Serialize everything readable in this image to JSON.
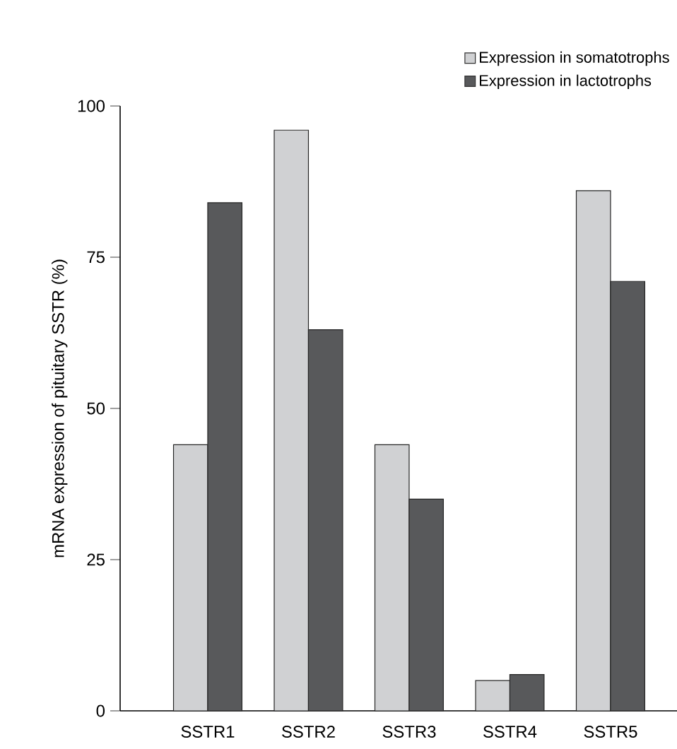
{
  "chart_data": {
    "type": "bar",
    "ylabel": "mRNA expression of pituitary SSTR (%)",
    "categories": [
      "SSTR1",
      "SSTR2",
      "SSTR3",
      "SSTR4",
      "SSTR5"
    ],
    "series": [
      {
        "name": "Expression in somatotrophs",
        "color": "#d0d1d3",
        "values": [
          44,
          96,
          44,
          5,
          86
        ]
      },
      {
        "name": "Expression in lactotrophs",
        "color": "#58595b",
        "values": [
          84,
          63,
          35,
          6,
          71
        ]
      }
    ],
    "ylim": [
      0,
      100
    ],
    "yticks": [
      0,
      25,
      50,
      75,
      100
    ],
    "legend": "top right"
  }
}
